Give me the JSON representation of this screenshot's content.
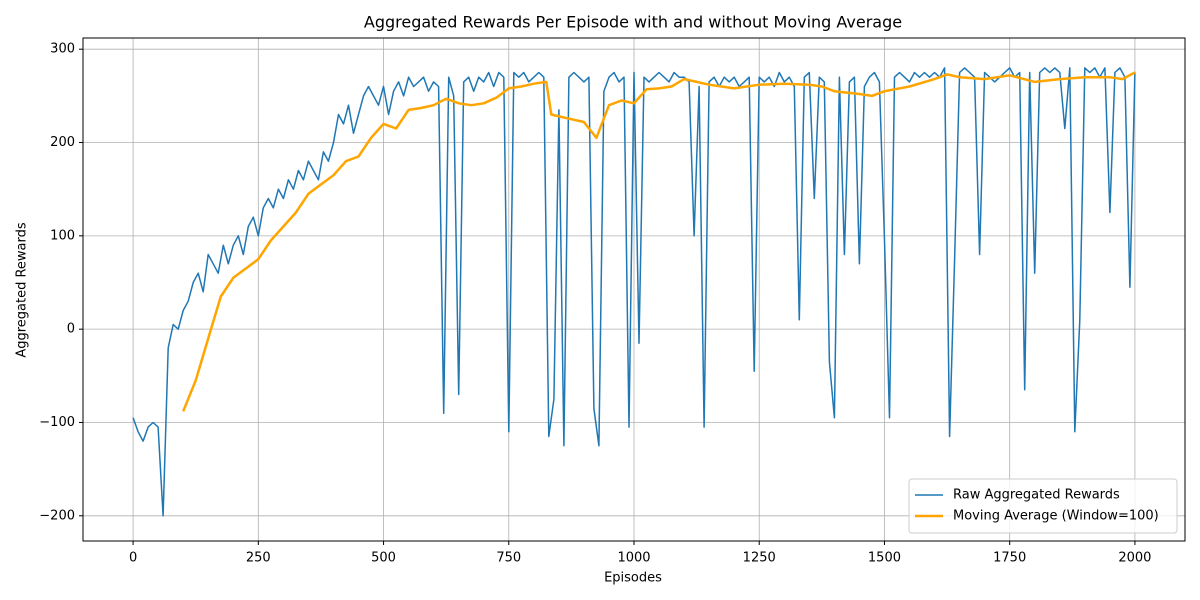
{
  "chart_data": {
    "type": "line",
    "title": "Aggregated Rewards Per Episode with and without Moving Average",
    "x_label": "Episodes",
    "y_label": "Aggregated Rewards",
    "xlim": [
      -100,
      2100
    ],
    "ylim": [
      -227,
      312
    ],
    "xticks": [
      0,
      250,
      500,
      750,
      1000,
      1250,
      1500,
      1750,
      2000
    ],
    "yticks": [
      {
        "value": -200,
        "label": "−200"
      },
      {
        "value": -100,
        "label": "−100"
      },
      0,
      100,
      200,
      300
    ],
    "grid": true,
    "legend": "lower right",
    "series": [
      {
        "name": "Raw Aggregated Rewards",
        "color": "#1f77b4",
        "width": 1.5,
        "x": [
          0,
          10,
          20,
          30,
          40,
          50,
          60,
          70,
          80,
          90,
          100,
          110,
          120,
          130,
          140,
          150,
          160,
          170,
          180,
          190,
          200,
          210,
          220,
          230,
          240,
          250,
          260,
          270,
          280,
          290,
          300,
          310,
          320,
          330,
          340,
          350,
          360,
          370,
          380,
          390,
          400,
          410,
          420,
          430,
          440,
          450,
          460,
          470,
          480,
          490,
          500,
          510,
          520,
          530,
          540,
          550,
          560,
          570,
          580,
          590,
          600,
          610,
          620,
          630,
          640,
          650,
          660,
          670,
          680,
          690,
          700,
          710,
          720,
          730,
          740,
          750,
          760,
          770,
          780,
          790,
          800,
          810,
          820,
          830,
          840,
          850,
          860,
          870,
          880,
          890,
          900,
          910,
          920,
          930,
          940,
          950,
          960,
          970,
          980,
          990,
          1000,
          1010,
          1020,
          1030,
          1040,
          1050,
          1060,
          1070,
          1080,
          1090,
          1100,
          1110,
          1120,
          1130,
          1140,
          1150,
          1160,
          1170,
          1180,
          1190,
          1200,
          1210,
          1220,
          1230,
          1240,
          1250,
          1260,
          1270,
          1280,
          1290,
          1300,
          1310,
          1320,
          1330,
          1340,
          1350,
          1360,
          1370,
          1380,
          1390,
          1400,
          1410,
          1420,
          1430,
          1440,
          1450,
          1460,
          1470,
          1480,
          1490,
          1500,
          1510,
          1520,
          1530,
          1540,
          1550,
          1560,
          1570,
          1580,
          1590,
          1600,
          1610,
          1620,
          1630,
          1640,
          1650,
          1660,
          1670,
          1680,
          1690,
          1700,
          1710,
          1720,
          1730,
          1740,
          1750,
          1760,
          1770,
          1780,
          1790,
          1800,
          1810,
          1820,
          1830,
          1840,
          1850,
          1860,
          1870,
          1880,
          1890,
          1900,
          1910,
          1920,
          1930,
          1940,
          1950,
          1960,
          1970,
          1980,
          1990,
          2000
        ],
        "values": [
          -95,
          -110,
          -120,
          -105,
          -100,
          -105,
          -200,
          -20,
          5,
          0,
          20,
          30,
          50,
          60,
          40,
          80,
          70,
          60,
          90,
          70,
          90,
          100,
          80,
          110,
          120,
          100,
          130,
          140,
          130,
          150,
          140,
          160,
          150,
          170,
          160,
          180,
          170,
          160,
          190,
          180,
          200,
          230,
          220,
          240,
          210,
          230,
          250,
          260,
          250,
          240,
          260,
          230,
          255,
          265,
          250,
          270,
          260,
          265,
          270,
          255,
          265,
          260,
          -90,
          270,
          250,
          -70,
          265,
          270,
          255,
          270,
          265,
          275,
          260,
          275,
          270,
          -110,
          275,
          270,
          275,
          265,
          270,
          275,
          270,
          -115,
          -75,
          235,
          -125,
          270,
          275,
          270,
          265,
          270,
          -85,
          -125,
          255,
          270,
          275,
          265,
          270,
          -105,
          275,
          -15,
          270,
          265,
          270,
          275,
          270,
          265,
          275,
          270,
          270,
          265,
          100,
          260,
          -105,
          265,
          270,
          260,
          270,
          265,
          270,
          260,
          265,
          270,
          -45,
          270,
          265,
          270,
          260,
          275,
          265,
          270,
          260,
          10,
          270,
          275,
          140,
          270,
          265,
          -35,
          -95,
          270,
          80,
          265,
          270,
          70,
          260,
          270,
          275,
          265,
          95,
          -95,
          270,
          275,
          270,
          265,
          275,
          270,
          275,
          270,
          275,
          270,
          280,
          -115,
          75,
          275,
          280,
          275,
          270,
          80,
          275,
          270,
          265,
          270,
          275,
          280,
          270,
          275,
          -65,
          275,
          60,
          275,
          280,
          275,
          280,
          275,
          215,
          280,
          -110,
          10,
          280,
          275,
          280,
          270,
          280,
          125,
          275,
          280,
          270,
          45,
          275
        ]
      },
      {
        "name": "Moving Average (Window=100)",
        "color": "#ffa500",
        "width": 2.5,
        "x": [
          100,
          125,
          150,
          175,
          200,
          250,
          275,
          300,
          325,
          350,
          375,
          400,
          425,
          450,
          475,
          500,
          525,
          550,
          575,
          600,
          625,
          650,
          675,
          700,
          725,
          750,
          775,
          800,
          825,
          835,
          850,
          875,
          900,
          925,
          950,
          975,
          1000,
          1025,
          1050,
          1075,
          1100,
          1125,
          1150,
          1200,
          1250,
          1300,
          1350,
          1375,
          1400,
          1450,
          1475,
          1500,
          1550,
          1600,
          1625,
          1650,
          1700,
          1750,
          1800,
          1850,
          1900,
          1950,
          1975,
          2000
        ],
        "values": [
          -88,
          -55,
          -10,
          35,
          55,
          75,
          95,
          110,
          125,
          145,
          155,
          165,
          180,
          185,
          205,
          220,
          215,
          235,
          237,
          240,
          247,
          242,
          240,
          242,
          248,
          258,
          260,
          263,
          265,
          230,
          228,
          225,
          222,
          205,
          240,
          245,
          242,
          257,
          258,
          260,
          268,
          265,
          262,
          258,
          262,
          263,
          262,
          260,
          255,
          252,
          250,
          255,
          260,
          268,
          273,
          270,
          268,
          272,
          265,
          268,
          270,
          270,
          268,
          275
        ]
      }
    ]
  }
}
